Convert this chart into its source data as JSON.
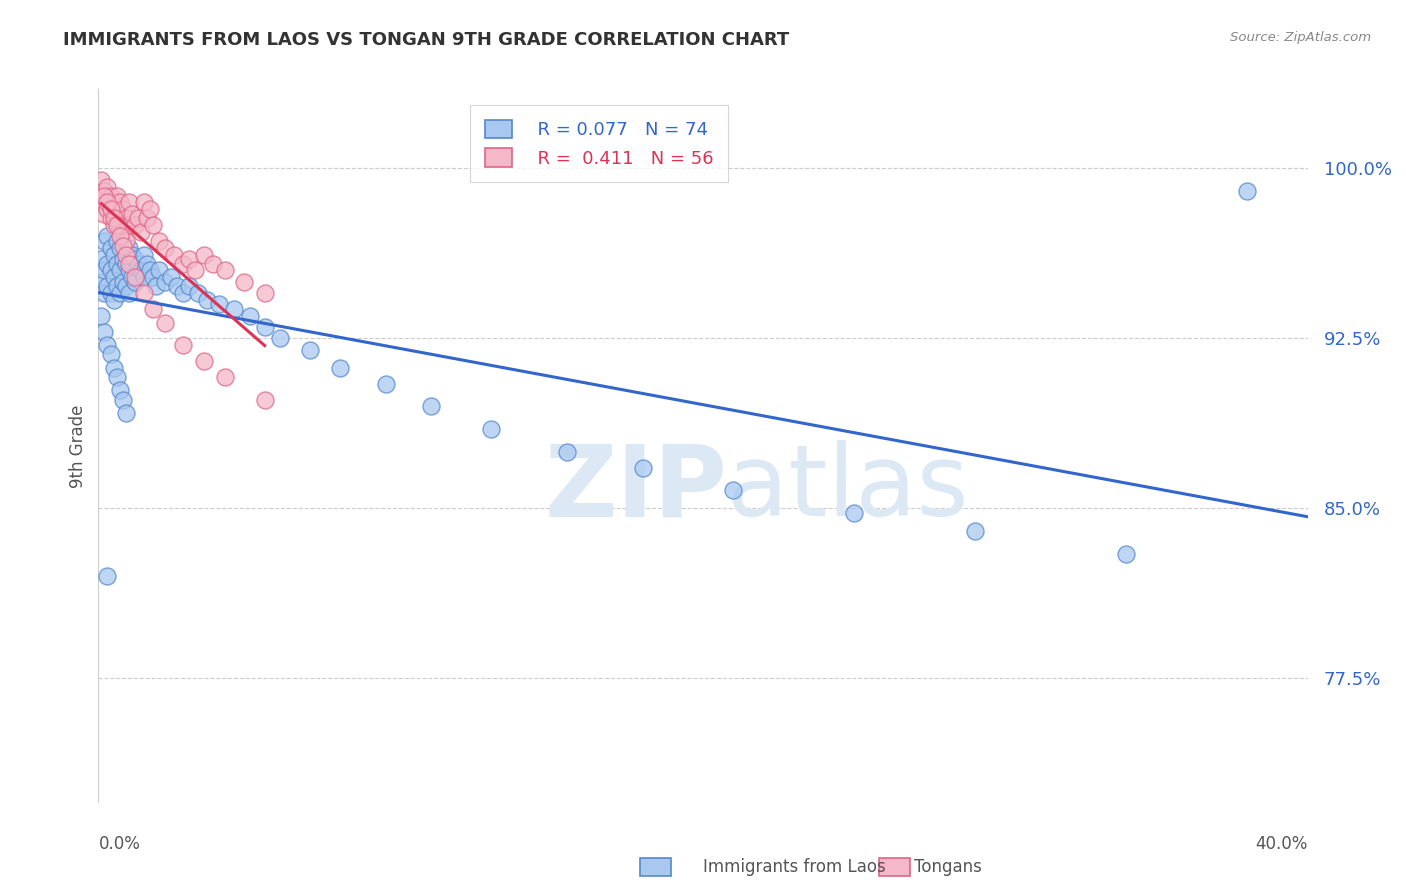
{
  "title": "IMMIGRANTS FROM LAOS VS TONGAN 9TH GRADE CORRELATION CHART",
  "source": "Source: ZipAtlas.com",
  "ylabel": "9th Grade",
  "xlim": [
    0.0,
    0.4
  ],
  "ylim": [
    0.72,
    1.035
  ],
  "legend_blue_r": "0.077",
  "legend_blue_n": "74",
  "legend_pink_r": "0.411",
  "legend_pink_n": "56",
  "blue_color": "#a8c8f0",
  "pink_color": "#f5b8c8",
  "blue_edge_color": "#5588cc",
  "pink_edge_color": "#dd6688",
  "blue_line_color": "#3366cc",
  "pink_line_color": "#dd3355",
  "watermark_zip": "ZIP",
  "watermark_atlas": "atlas",
  "watermark_color": "#dde8f5",
  "ytick_positions": [
    0.775,
    0.85,
    0.925,
    1.0
  ],
  "ytick_labels": [
    "77.5%",
    "85.0%",
    "92.5%",
    "100.0%"
  ],
  "blue_scatter_x": [
    0.001,
    0.001,
    0.002,
    0.002,
    0.002,
    0.003,
    0.003,
    0.003,
    0.004,
    0.004,
    0.004,
    0.005,
    0.005,
    0.005,
    0.006,
    0.006,
    0.006,
    0.007,
    0.007,
    0.007,
    0.008,
    0.008,
    0.009,
    0.009,
    0.01,
    0.01,
    0.01,
    0.011,
    0.011,
    0.012,
    0.012,
    0.013,
    0.014,
    0.015,
    0.015,
    0.016,
    0.017,
    0.018,
    0.019,
    0.02,
    0.022,
    0.024,
    0.026,
    0.028,
    0.03,
    0.033,
    0.036,
    0.04,
    0.045,
    0.05,
    0.055,
    0.06,
    0.07,
    0.08,
    0.095,
    0.11,
    0.13,
    0.155,
    0.18,
    0.21,
    0.25,
    0.29,
    0.34,
    0.001,
    0.002,
    0.003,
    0.004,
    0.005,
    0.006,
    0.007,
    0.008,
    0.009,
    0.38,
    0.003
  ],
  "blue_scatter_y": [
    0.96,
    0.95,
    0.968,
    0.955,
    0.945,
    0.97,
    0.958,
    0.948,
    0.965,
    0.955,
    0.945,
    0.962,
    0.952,
    0.942,
    0.968,
    0.958,
    0.948,
    0.965,
    0.955,
    0.945,
    0.96,
    0.95,
    0.958,
    0.948,
    0.965,
    0.955,
    0.945,
    0.962,
    0.952,
    0.96,
    0.95,
    0.958,
    0.955,
    0.962,
    0.952,
    0.958,
    0.955,
    0.952,
    0.948,
    0.955,
    0.95,
    0.952,
    0.948,
    0.945,
    0.948,
    0.945,
    0.942,
    0.94,
    0.938,
    0.935,
    0.93,
    0.925,
    0.92,
    0.912,
    0.905,
    0.895,
    0.885,
    0.875,
    0.868,
    0.858,
    0.848,
    0.84,
    0.83,
    0.935,
    0.928,
    0.922,
    0.918,
    0.912,
    0.908,
    0.902,
    0.898,
    0.892,
    0.99,
    0.82
  ],
  "pink_scatter_x": [
    0.001,
    0.001,
    0.002,
    0.002,
    0.003,
    0.003,
    0.004,
    0.004,
    0.005,
    0.005,
    0.006,
    0.006,
    0.007,
    0.007,
    0.008,
    0.008,
    0.009,
    0.009,
    0.01,
    0.01,
    0.011,
    0.012,
    0.013,
    0.014,
    0.015,
    0.016,
    0.017,
    0.018,
    0.02,
    0.022,
    0.025,
    0.028,
    0.03,
    0.032,
    0.035,
    0.038,
    0.042,
    0.048,
    0.055,
    0.002,
    0.003,
    0.004,
    0.005,
    0.006,
    0.007,
    0.008,
    0.009,
    0.01,
    0.012,
    0.015,
    0.018,
    0.022,
    0.028,
    0.035,
    0.042,
    0.055
  ],
  "pink_scatter_y": [
    0.995,
    0.985,
    0.99,
    0.98,
    0.992,
    0.982,
    0.988,
    0.978,
    0.985,
    0.975,
    0.988,
    0.978,
    0.985,
    0.975,
    0.982,
    0.972,
    0.978,
    0.968,
    0.985,
    0.975,
    0.98,
    0.975,
    0.978,
    0.972,
    0.985,
    0.978,
    0.982,
    0.975,
    0.968,
    0.965,
    0.962,
    0.958,
    0.96,
    0.955,
    0.962,
    0.958,
    0.955,
    0.95,
    0.945,
    0.988,
    0.985,
    0.982,
    0.978,
    0.975,
    0.97,
    0.966,
    0.962,
    0.958,
    0.952,
    0.945,
    0.938,
    0.932,
    0.922,
    0.915,
    0.908,
    0.898
  ]
}
